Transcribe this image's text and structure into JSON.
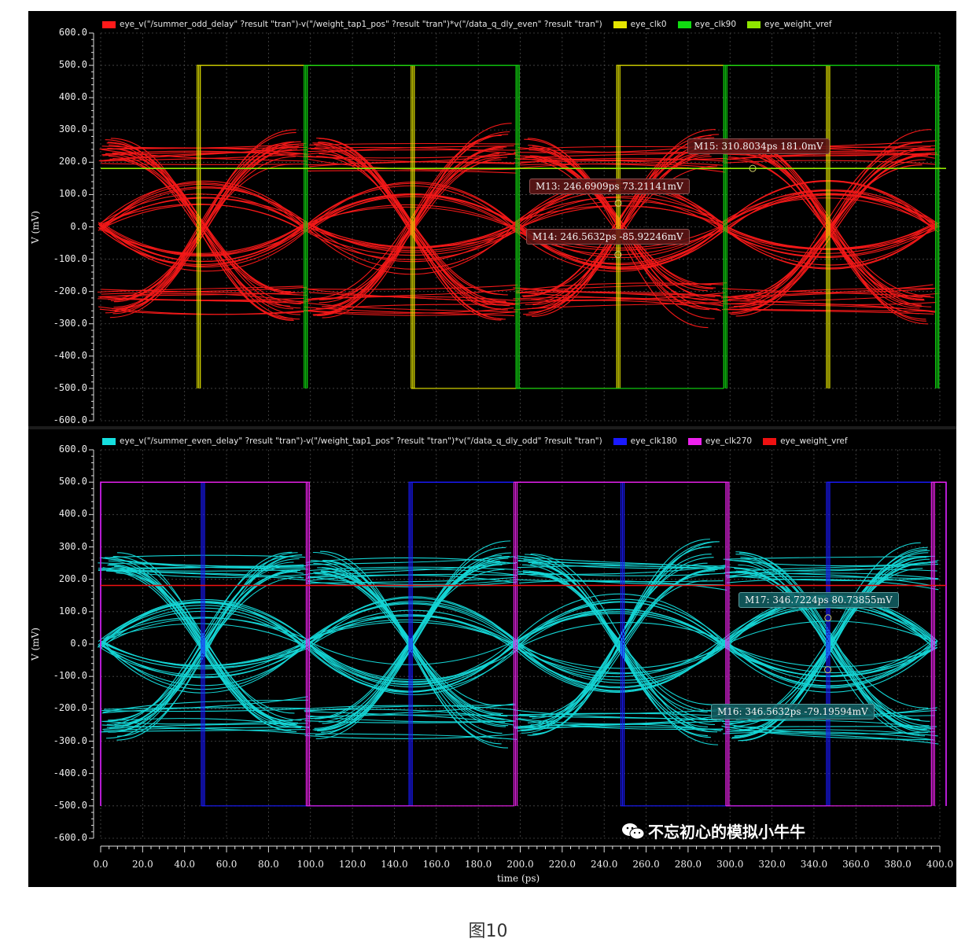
{
  "caption": "图10",
  "watermark": "不忘初心的模拟小牛牛",
  "chart_data": [
    {
      "type": "line",
      "panel": "top",
      "ylabel": "V (mV)",
      "xlabel": "",
      "ylim": [
        -600,
        600
      ],
      "yticks": [
        "600.0",
        "500.0",
        "400.0",
        "300.0",
        "200.0",
        "100.0",
        "0.0",
        "-100.0",
        "-200.0",
        "-300.0",
        "-400.0",
        "-500.0",
        "-600.0"
      ],
      "legend": [
        {
          "name": "eye_v(\"/summer_odd_delay\" ?result \"tran\")-v(\"/weight_tap1_pos\" ?result \"tran\")*v(\"/data_q_dly_even\" ?result \"tran\")",
          "color": "#ff1a1a"
        },
        {
          "name": "eye_clk0",
          "color": "#e6e600"
        },
        {
          "name": "eye_clk90",
          "color": "#11dd11"
        },
        {
          "name": "eye_weight_vref",
          "color": "#8fe600"
        }
      ],
      "eye": {
        "color": "#ff1a1a",
        "crossings_ps": [
          0,
          98,
          198,
          297,
          398
        ],
        "rail_high_mV": 230,
        "rail_low_mV": -235
      },
      "clocks": [
        {
          "name": "eye_clk0",
          "color": "#e6e600",
          "high_mV": 500,
          "low_mV": -500,
          "high_intervals_ps": [
            [
              46,
              148
            ],
            [
              246,
              346
            ]
          ]
        },
        {
          "name": "eye_clk90",
          "color": "#11dd11",
          "high_mV": 500,
          "low_mV": -500,
          "high_intervals_ps": [
            [
              97,
              198
            ],
            [
              297,
              398
            ]
          ]
        }
      ],
      "vref": {
        "name": "eye_weight_vref",
        "color": "#8fe600",
        "value_mV": 181
      },
      "markers": [
        {
          "label": "M15: 310.8034ps 181.0mV",
          "x_ps": 310.8,
          "y_mV": 181.0
        },
        {
          "label": "M13: 246.6909ps 73.21141mV",
          "x_ps": 246.7,
          "y_mV": 73.2
        },
        {
          "label": "M14: 246.5632ps -85.92246mV",
          "x_ps": 246.6,
          "y_mV": -85.9
        }
      ]
    },
    {
      "type": "line",
      "panel": "bottom",
      "ylabel": "V (mV)",
      "xlabel": "time (ps)",
      "ylim": [
        -600,
        600
      ],
      "xlim": [
        0,
        400
      ],
      "yticks": [
        "600.0",
        "500.0",
        "400.0",
        "300.0",
        "200.0",
        "100.0",
        "0.0",
        "-100.0",
        "-200.0",
        "-300.0",
        "-400.0",
        "-500.0",
        "-600.0"
      ],
      "xticks": [
        "0.0",
        "20.0",
        "40.0",
        "60.0",
        "80.0",
        "100.0",
        "120.0",
        "140.0",
        "160.0",
        "180.0",
        "200.0",
        "220.0",
        "240.0",
        "260.0",
        "280.0",
        "300.0",
        "320.0",
        "340.0",
        "360.0",
        "380.0",
        "400.0"
      ],
      "legend": [
        {
          "name": "eye_v(\"/summer_even_delay\" ?result \"tran\")-v(\"/weight_tap1_pos\" ?result \"tran\")*v(\"/data_q_dly_odd\" ?result \"tran\")",
          "color": "#16e0e0"
        },
        {
          "name": "eye_clk180",
          "color": "#1a1aff"
        },
        {
          "name": "eye_clk270",
          "color": "#ee22ee"
        },
        {
          "name": "eye_weight_vref",
          "color": "#ee1111"
        }
      ],
      "eye": {
        "color": "#16e0e0",
        "crossings_ps": [
          0,
          98,
          198,
          297,
          398
        ],
        "rail_high_mV": 240,
        "rail_low_mV": -250
      },
      "clocks": [
        {
          "name": "eye_clk180",
          "color": "#1a1aff",
          "high_mV": 500,
          "low_mV": -500,
          "high_intervals_ps": [
            [
              -10,
              48
            ],
            [
              147,
              248
            ],
            [
              346,
              410
            ]
          ]
        },
        {
          "name": "eye_clk270",
          "color": "#ee22ee",
          "high_mV": 500,
          "low_mV": -500,
          "high_intervals_ps": [
            [
              -10,
              98
            ],
            [
              197,
              298
            ],
            [
              396,
              410
            ]
          ]
        }
      ],
      "vref": {
        "name": "eye_weight_vref",
        "color": "#ee1111",
        "value_mV": 181
      },
      "markers": [
        {
          "label": "M17: 346.7224ps 80.73855mV",
          "x_ps": 346.7,
          "y_mV": 80.7
        },
        {
          "label": "M16: 346.5632ps -79.19594mV",
          "x_ps": 346.6,
          "y_mV": -79.2
        }
      ]
    }
  ]
}
